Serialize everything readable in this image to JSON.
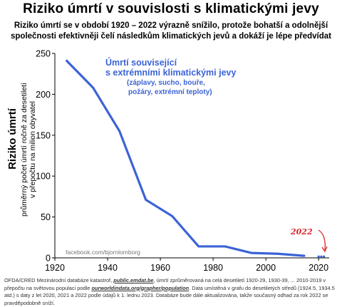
{
  "chart_data": {
    "type": "line",
    "title": "Riziko úmrtí v souvislosti s klimatickými jevy",
    "subtitle": [
      "Riziko úmrtí se v období 1920 – 2022 výrazně snížilo, protože bohatší a odolnější",
      "společnosti efektivněji čelí následkům klimatických jevů a dokáží je lépe předvídat"
    ],
    "ylabel": {
      "main": "Riziko úmrtí",
      "sub1": "průměrný počet úmrtí ročně za desetiletí",
      "sub2": "v přepočtu na milion obyvatel"
    },
    "xlim": [
      1920,
      2024
    ],
    "ylim": [
      0,
      250
    ],
    "xticks": [
      1920,
      1940,
      1960,
      1980,
      2000,
      2020
    ],
    "yticks": [
      0,
      50,
      100,
      150,
      200,
      250
    ],
    "grid": false,
    "series": [
      {
        "name": "Úmrtí související s extrémními klimatickými jevy",
        "color": "#3b63d6",
        "x": [
          1924.5,
          1934.5,
          1944.5,
          1954.5,
          1964.5,
          1974.5,
          1984.5,
          1994.5,
          2004.5,
          2014.5
        ],
        "y": [
          241,
          208,
          155,
          71,
          51,
          14,
          14,
          6,
          5,
          2.5
        ]
      },
      {
        "name": "",
        "color": "#3b63d6",
        "style": "points",
        "x": [
          2020,
          2021,
          2022
        ],
        "y": [
          1.5,
          1.5,
          1.5
        ]
      }
    ],
    "legend": {
      "line1": "Úmrtí související",
      "line2": "s extrémními klimatickými jevy",
      "line3": "(záplavy, sucho, bouře,",
      "line4": "požáry, extrémní teploty)",
      "position": "top-right"
    },
    "annotations": {
      "year_label": "2022",
      "watermark": "facebook.com/bjornlomborg"
    }
  },
  "footer": {
    "p1": "OFDA/CRED Mezinárodní databáze katastrof, ",
    "link1": "public.emdat.be",
    "p2": ", úmrtí zprůměrovaná na celá desetiletí 1920-29, 1930-39, ... 2010-2019 v přepočtu na světovou populaci podle ",
    "link2": "ourworldindata.org/grapher/population",
    "p3": ". Data umístěná v grafu do desetiletých středů (1924.5, 1934.5 atd.) s daty z let 2020, 2021 a 2022 podle údajů k 1. lednu 2023. Databáze bude dále aktualizována, takže současný odhad za rok 2022 se pravděpodobně sníží."
  }
}
